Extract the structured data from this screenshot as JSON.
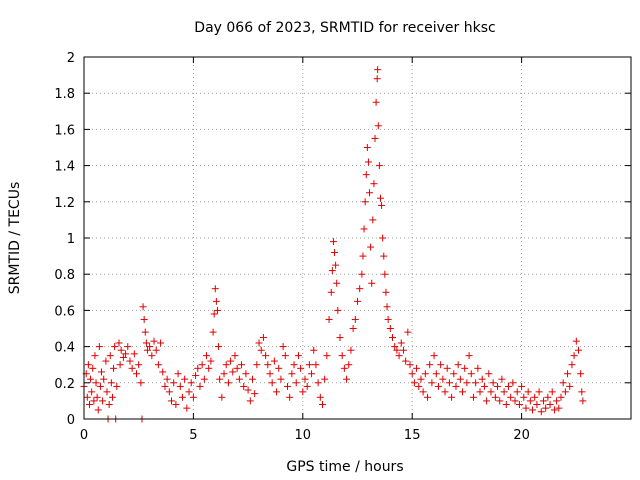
{
  "chart_data": {
    "type": "scatter",
    "title": "Day 066 of 2023, SRMTID for receiver hksc",
    "xlabel": "GPS time / hours",
    "ylabel": "SRMTID / TECUs",
    "xlim": [
      0,
      25
    ],
    "ylim": [
      0,
      2
    ],
    "xticks": [
      0,
      5,
      10,
      15,
      20
    ],
    "xtick_labels": [
      "0",
      "5",
      "10",
      "15",
      "20"
    ],
    "yticks": [
      0,
      0.2,
      0.4,
      0.6,
      0.8,
      1,
      1.2,
      1.4,
      1.6,
      1.8,
      2
    ],
    "ytick_labels": [
      "0",
      "0.2",
      "0.4",
      "0.6",
      "0.8",
      "1",
      "1.2",
      "1.4",
      "1.6",
      "1.8",
      "2"
    ],
    "grid": true,
    "marker": "+",
    "color": "#e00000",
    "series": [
      {
        "name": "SRMTID",
        "points": [
          [
            0.0,
            0.18
          ],
          [
            0.1,
            0.25
          ],
          [
            0.15,
            0.12
          ],
          [
            0.2,
            0.3
          ],
          [
            0.25,
            0.08
          ],
          [
            0.3,
            0.22
          ],
          [
            0.35,
            0.15
          ],
          [
            0.4,
            0.28
          ],
          [
            0.45,
            0.1
          ],
          [
            0.5,
            0.35
          ],
          [
            0.55,
            0.2
          ],
          [
            0.6,
            0.12
          ],
          [
            0.65,
            0.05
          ],
          [
            0.7,
            0.4
          ],
          [
            0.75,
            0.18
          ],
          [
            0.8,
            0.26
          ],
          [
            0.85,
            0.1
          ],
          [
            0.9,
            0.22
          ],
          [
            1.0,
            0.32
          ],
          [
            1.05,
            0.15
          ],
          [
            1.1,
            0.0
          ],
          [
            1.15,
            0.08
          ],
          [
            1.2,
            0.35
          ],
          [
            1.25,
            0.2
          ],
          [
            1.3,
            0.12
          ],
          [
            1.35,
            0.28
          ],
          [
            1.4,
            0.4
          ],
          [
            1.45,
            0.0
          ],
          [
            1.5,
            0.18
          ],
          [
            1.6,
            0.42
          ],
          [
            1.65,
            0.3
          ],
          [
            1.7,
            0.38
          ],
          [
            1.8,
            0.34
          ],
          [
            1.9,
            0.36
          ],
          [
            2.0,
            0.4
          ],
          [
            2.1,
            0.32
          ],
          [
            2.2,
            0.28
          ],
          [
            2.3,
            0.36
          ],
          [
            2.4,
            0.25
          ],
          [
            2.5,
            0.3
          ],
          [
            2.6,
            0.2
          ],
          [
            2.65,
            0.0
          ],
          [
            2.7,
            0.62
          ],
          [
            2.75,
            0.55
          ],
          [
            2.8,
            0.48
          ],
          [
            2.85,
            0.42
          ],
          [
            2.9,
            0.38
          ],
          [
            3.0,
            0.4
          ],
          [
            3.1,
            0.35
          ],
          [
            3.2,
            0.43
          ],
          [
            3.3,
            0.38
          ],
          [
            3.4,
            0.3
          ],
          [
            3.5,
            0.42
          ],
          [
            3.6,
            0.26
          ],
          [
            3.7,
            0.18
          ],
          [
            3.8,
            0.22
          ],
          [
            3.9,
            0.15
          ],
          [
            4.0,
            0.1
          ],
          [
            4.1,
            0.2
          ],
          [
            4.2,
            0.08
          ],
          [
            4.3,
            0.25
          ],
          [
            4.4,
            0.18
          ],
          [
            4.5,
            0.12
          ],
          [
            4.6,
            0.22
          ],
          [
            4.7,
            0.06
          ],
          [
            4.8,
            0.15
          ],
          [
            4.9,
            0.2
          ],
          [
            5.0,
            0.12
          ],
          [
            5.1,
            0.24
          ],
          [
            5.2,
            0.28
          ],
          [
            5.3,
            0.18
          ],
          [
            5.4,
            0.3
          ],
          [
            5.5,
            0.22
          ],
          [
            5.6,
            0.35
          ],
          [
            5.7,
            0.28
          ],
          [
            5.8,
            0.32
          ],
          [
            5.9,
            0.48
          ],
          [
            5.95,
            0.58
          ],
          [
            6.0,
            0.72
          ],
          [
            6.05,
            0.65
          ],
          [
            6.1,
            0.6
          ],
          [
            6.15,
            0.4
          ],
          [
            6.2,
            0.22
          ],
          [
            6.3,
            0.12
          ],
          [
            6.4,
            0.25
          ],
          [
            6.5,
            0.3
          ],
          [
            6.6,
            0.2
          ],
          [
            6.7,
            0.32
          ],
          [
            6.8,
            0.26
          ],
          [
            6.9,
            0.35
          ],
          [
            7.0,
            0.28
          ],
          [
            7.1,
            0.22
          ],
          [
            7.2,
            0.3
          ],
          [
            7.3,
            0.18
          ],
          [
            7.4,
            0.25
          ],
          [
            7.5,
            0.16
          ],
          [
            7.6,
            0.1
          ],
          [
            7.7,
            0.22
          ],
          [
            7.8,
            0.14
          ],
          [
            7.9,
            0.3
          ],
          [
            8.0,
            0.42
          ],
          [
            8.1,
            0.38
          ],
          [
            8.2,
            0.45
          ],
          [
            8.3,
            0.35
          ],
          [
            8.4,
            0.3
          ],
          [
            8.5,
            0.25
          ],
          [
            8.6,
            0.2
          ],
          [
            8.7,
            0.32
          ],
          [
            8.8,
            0.15
          ],
          [
            8.9,
            0.28
          ],
          [
            9.0,
            0.22
          ],
          [
            9.1,
            0.4
          ],
          [
            9.2,
            0.35
          ],
          [
            9.3,
            0.18
          ],
          [
            9.4,
            0.12
          ],
          [
            9.5,
            0.25
          ],
          [
            9.6,
            0.3
          ],
          [
            9.7,
            0.2
          ],
          [
            9.8,
            0.35
          ],
          [
            9.9,
            0.28
          ],
          [
            10.0,
            0.15
          ],
          [
            10.1,
            0.22
          ],
          [
            10.2,
            0.18
          ],
          [
            10.3,
            0.3
          ],
          [
            10.4,
            0.25
          ],
          [
            10.5,
            0.38
          ],
          [
            10.6,
            0.3
          ],
          [
            10.7,
            0.2
          ],
          [
            10.8,
            0.12
          ],
          [
            10.9,
            0.08
          ],
          [
            11.0,
            0.22
          ],
          [
            11.1,
            0.35
          ],
          [
            11.2,
            0.55
          ],
          [
            11.3,
            0.7
          ],
          [
            11.35,
            0.82
          ],
          [
            11.4,
            0.98
          ],
          [
            11.45,
            0.92
          ],
          [
            11.5,
            0.85
          ],
          [
            11.55,
            0.75
          ],
          [
            11.6,
            0.6
          ],
          [
            11.7,
            0.45
          ],
          [
            11.8,
            0.35
          ],
          [
            11.9,
            0.28
          ],
          [
            12.0,
            0.22
          ],
          [
            12.1,
            0.3
          ],
          [
            12.2,
            0.38
          ],
          [
            12.3,
            0.5
          ],
          [
            12.4,
            0.55
          ],
          [
            12.5,
            0.65
          ],
          [
            12.6,
            0.72
          ],
          [
            12.7,
            0.8
          ],
          [
            12.75,
            0.9
          ],
          [
            12.8,
            1.05
          ],
          [
            12.85,
            1.2
          ],
          [
            12.9,
            1.35
          ],
          [
            12.95,
            1.5
          ],
          [
            13.0,
            1.42
          ],
          [
            13.05,
            1.25
          ],
          [
            13.1,
            0.95
          ],
          [
            13.15,
            0.75
          ],
          [
            13.2,
            1.1
          ],
          [
            13.25,
            1.3
          ],
          [
            13.3,
            1.55
          ],
          [
            13.35,
            1.75
          ],
          [
            13.4,
            1.88
          ],
          [
            13.42,
            1.93
          ],
          [
            13.45,
            1.62
          ],
          [
            13.5,
            1.4
          ],
          [
            13.55,
            1.22
          ],
          [
            13.6,
            1.18
          ],
          [
            13.65,
            1.0
          ],
          [
            13.7,
            0.9
          ],
          [
            13.75,
            0.8
          ],
          [
            13.8,
            0.7
          ],
          [
            13.85,
            0.62
          ],
          [
            13.9,
            0.55
          ],
          [
            14.0,
            0.5
          ],
          [
            14.1,
            0.45
          ],
          [
            14.2,
            0.4
          ],
          [
            14.3,
            0.38
          ],
          [
            14.4,
            0.35
          ],
          [
            14.5,
            0.42
          ],
          [
            14.6,
            0.38
          ],
          [
            14.7,
            0.32
          ],
          [
            14.8,
            0.48
          ],
          [
            14.9,
            0.3
          ],
          [
            15.0,
            0.25
          ],
          [
            15.1,
            0.2
          ],
          [
            15.2,
            0.28
          ],
          [
            15.3,
            0.18
          ],
          [
            15.4,
            0.22
          ],
          [
            15.5,
            0.15
          ],
          [
            15.6,
            0.25
          ],
          [
            15.7,
            0.12
          ],
          [
            15.8,
            0.3
          ],
          [
            15.9,
            0.2
          ],
          [
            16.0,
            0.35
          ],
          [
            16.1,
            0.25
          ],
          [
            16.2,
            0.18
          ],
          [
            16.3,
            0.3
          ],
          [
            16.4,
            0.22
          ],
          [
            16.5,
            0.15
          ],
          [
            16.6,
            0.28
          ],
          [
            16.7,
            0.2
          ],
          [
            16.8,
            0.12
          ],
          [
            16.9,
            0.25
          ],
          [
            17.0,
            0.18
          ],
          [
            17.1,
            0.3
          ],
          [
            17.2,
            0.22
          ],
          [
            17.3,
            0.15
          ],
          [
            17.4,
            0.28
          ],
          [
            17.5,
            0.2
          ],
          [
            17.6,
            0.35
          ],
          [
            17.7,
            0.25
          ],
          [
            17.8,
            0.12
          ],
          [
            17.9,
            0.2
          ],
          [
            18.0,
            0.28
          ],
          [
            18.1,
            0.15
          ],
          [
            18.2,
            0.22
          ],
          [
            18.3,
            0.18
          ],
          [
            18.4,
            0.1
          ],
          [
            18.5,
            0.25
          ],
          [
            18.6,
            0.15
          ],
          [
            18.7,
            0.2
          ],
          [
            18.8,
            0.12
          ],
          [
            18.9,
            0.18
          ],
          [
            19.0,
            0.1
          ],
          [
            19.1,
            0.22
          ],
          [
            19.2,
            0.15
          ],
          [
            19.3,
            0.08
          ],
          [
            19.4,
            0.18
          ],
          [
            19.5,
            0.12
          ],
          [
            19.6,
            0.2
          ],
          [
            19.7,
            0.1
          ],
          [
            19.8,
            0.15
          ],
          [
            19.9,
            0.08
          ],
          [
            20.0,
            0.18
          ],
          [
            20.1,
            0.12
          ],
          [
            20.2,
            0.06
          ],
          [
            20.3,
            0.15
          ],
          [
            20.4,
            0.1
          ],
          [
            20.5,
            0.05
          ],
          [
            20.6,
            0.12
          ],
          [
            20.7,
            0.08
          ],
          [
            20.8,
            0.15
          ],
          [
            20.9,
            0.04
          ],
          [
            21.0,
            0.1
          ],
          [
            21.1,
            0.06
          ],
          [
            21.2,
            0.12
          ],
          [
            21.3,
            0.08
          ],
          [
            21.4,
            0.15
          ],
          [
            21.5,
            0.05
          ],
          [
            21.6,
            0.1
          ],
          [
            21.7,
            0.06
          ],
          [
            21.8,
            0.12
          ],
          [
            21.9,
            0.2
          ],
          [
            22.0,
            0.15
          ],
          [
            22.1,
            0.25
          ],
          [
            22.2,
            0.18
          ],
          [
            22.3,
            0.3
          ],
          [
            22.4,
            0.35
          ],
          [
            22.5,
            0.43
          ],
          [
            22.6,
            0.38
          ],
          [
            22.7,
            0.25
          ],
          [
            22.75,
            0.15
          ],
          [
            22.8,
            0.1
          ]
        ]
      }
    ]
  }
}
